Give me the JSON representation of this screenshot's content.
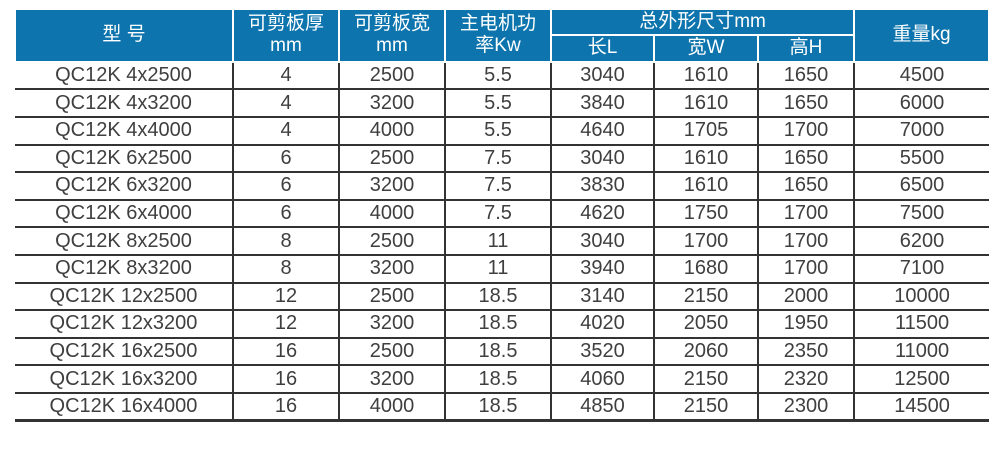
{
  "colors": {
    "header_bg": "#0d74ad",
    "header_text": "#ffffff",
    "grid_line": "#333333",
    "body_text": "#3f3f3f",
    "page_bg": "#ffffff"
  },
  "table": {
    "column_keys": [
      "model",
      "cut-thickness",
      "cut-width",
      "motor-power",
      "length",
      "width",
      "height",
      "weight"
    ],
    "headers": {
      "model": "型 号",
      "cut_thickness": "可剪板厚\nmm",
      "cut_width": "可剪板宽\nmm",
      "motor_power": "主电机功\n率Kw",
      "overall_dimensions": "总外形尺寸mm",
      "length": "长L",
      "width": "宽W",
      "height": "高H",
      "weight": "重量kg"
    },
    "rows": [
      [
        "QC12K 4x2500",
        "4",
        "2500",
        "5.5",
        "3040",
        "1610",
        "1650",
        "4500"
      ],
      [
        "QC12K 4x3200",
        "4",
        "3200",
        "5.5",
        "3840",
        "1610",
        "1650",
        "6000"
      ],
      [
        "QC12K 4x4000",
        "4",
        "4000",
        "5.5",
        "4640",
        "1705",
        "1700",
        "7000"
      ],
      [
        "QC12K 6x2500",
        "6",
        "2500",
        "7.5",
        "3040",
        "1610",
        "1650",
        "5500"
      ],
      [
        "QC12K 6x3200",
        "6",
        "3200",
        "7.5",
        "3830",
        "1610",
        "1650",
        "6500"
      ],
      [
        "QC12K 6x4000",
        "6",
        "4000",
        "7.5",
        "4620",
        "1750",
        "1700",
        "7500"
      ],
      [
        "QC12K 8x2500",
        "8",
        "2500",
        "11",
        "3040",
        "1700",
        "1700",
        "6200"
      ],
      [
        "QC12K 8x3200",
        "8",
        "3200",
        "11",
        "3940",
        "1680",
        "1700",
        "7100"
      ],
      [
        "QC12K 12x2500",
        "12",
        "2500",
        "18.5",
        "3140",
        "2150",
        "2000",
        "10000"
      ],
      [
        "QC12K 12x3200",
        "12",
        "3200",
        "18.5",
        "4020",
        "2050",
        "1950",
        "11500"
      ],
      [
        "QC12K 16x2500",
        "16",
        "2500",
        "18.5",
        "3520",
        "2060",
        "2350",
        "11000"
      ],
      [
        "QC12K 16x3200",
        "16",
        "3200",
        "18.5",
        "4060",
        "2150",
        "2320",
        "12500"
      ],
      [
        "QC12K 16x4000",
        "16",
        "4000",
        "18.5",
        "4850",
        "2150",
        "2300",
        "14500"
      ]
    ]
  }
}
